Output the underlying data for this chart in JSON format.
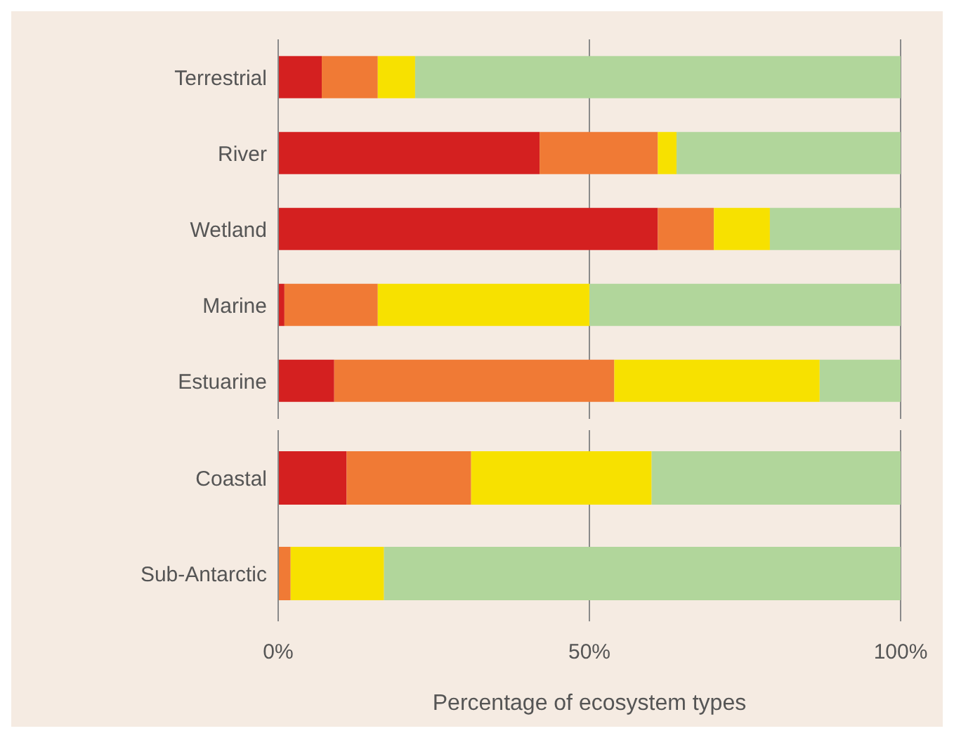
{
  "chart_data": [
    {
      "type": "bar",
      "orientation": "horizontal",
      "stacked": true,
      "categories": [
        "Terrestrial",
        "River",
        "Wetland",
        "Marine",
        "Estuarine"
      ],
      "series": [
        {
          "color": "#d42020",
          "values": [
            7,
            42,
            61,
            1,
            9
          ]
        },
        {
          "color": "#f07a35",
          "values": [
            9,
            19,
            9,
            15,
            45
          ]
        },
        {
          "color": "#f7e100",
          "values": [
            6,
            3,
            9,
            34,
            33
          ]
        },
        {
          "color": "#b1d69b",
          "values": [
            78,
            36,
            21,
            50,
            13
          ]
        }
      ],
      "xlim": [
        0,
        100
      ],
      "xticks": [
        {
          "value": 0,
          "label": null
        },
        {
          "value": 50,
          "label": null
        },
        {
          "value": 100,
          "label": null
        }
      ],
      "grid": "x",
      "tick_labels": "y"
    },
    {
      "type": "bar",
      "orientation": "horizontal",
      "stacked": true,
      "categories": [
        "Coastal",
        "Sub-Antarctic"
      ],
      "series": [
        {
          "color": "#d42020",
          "values": [
            11,
            0
          ]
        },
        {
          "color": "#f07a35",
          "values": [
            20,
            2
          ]
        },
        {
          "color": "#f7e100",
          "values": [
            29,
            15
          ]
        },
        {
          "color": "#b1d69b",
          "values": [
            40,
            83
          ]
        }
      ],
      "xlim": [
        0,
        100
      ],
      "xticks": [
        {
          "value": 0,
          "label": "0%"
        },
        {
          "value": 50,
          "label": "50%"
        },
        {
          "value": 100,
          "label": "100%"
        }
      ],
      "grid": "x",
      "xlabel": "Percentage of ecosystem types"
    }
  ]
}
